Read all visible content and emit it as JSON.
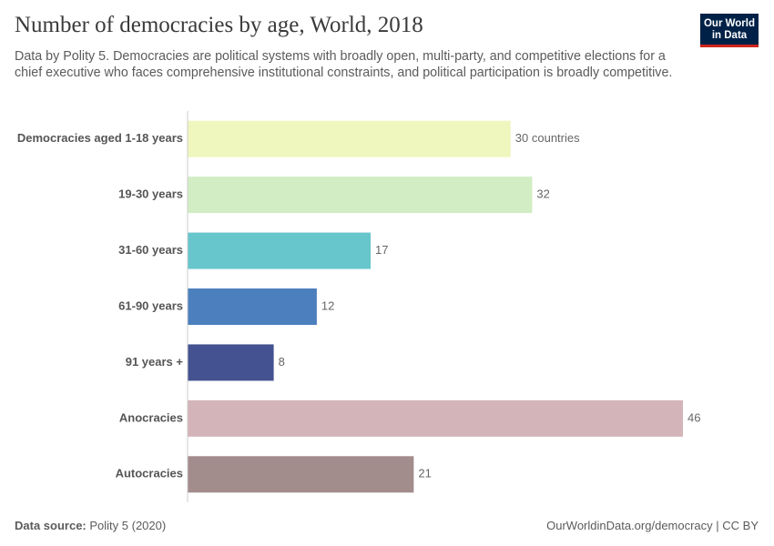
{
  "chart_data": {
    "type": "bar",
    "orientation": "horizontal",
    "title": "Number of democracies by age, World, 2018",
    "subtitle": "Data by Polity 5. Democracies are political systems with broadly open, multi-party, and competitive elections for a chief executive who faces comprehensive institutional constraints, and political participation is broadly competitive.",
    "categories": [
      "Democracies aged 1-18 years",
      "19-30 years",
      "31-60 years",
      "61-90 years",
      "91 years +",
      "Anocracies",
      "Autocracies"
    ],
    "values": [
      30,
      32,
      17,
      12,
      8,
      46,
      21
    ],
    "value_labels": [
      "30 countries",
      "32",
      "17",
      "12",
      "8",
      "46",
      "21"
    ],
    "colors": [
      "#f0f7be",
      "#d2edc4",
      "#67c6cb",
      "#4b7fbd",
      "#445291",
      "#d3b4b8",
      "#a38c8c"
    ]
  },
  "logo": [
    "Our World",
    "in Data"
  ],
  "footer": {
    "source_label": "Data source:",
    "source": "Polity 5 (2020)",
    "url": "OurWorldinData.org/democracy | CC BY"
  }
}
